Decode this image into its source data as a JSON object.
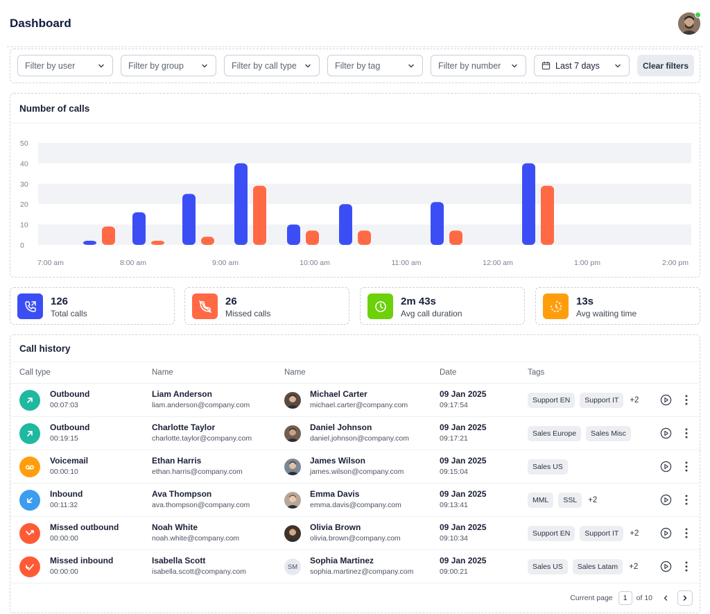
{
  "header": {
    "title": "Dashboard"
  },
  "filters": {
    "user": "Filter by user",
    "group": "Filter by group",
    "call_type": "Filter by call type",
    "tag": "Filter by tag",
    "number": "Filter by number",
    "date_range": "Last 7 days",
    "clear_label": "Clear filters"
  },
  "colors": {
    "outbound_series": "#3b4ef5",
    "missed_series": "#ff6a45",
    "total_calls": "#3b4ef5",
    "missed_calls": "#ff6a45",
    "avg_duration": "#6cd10a",
    "avg_waiting": "#ff9e0d"
  },
  "chart_data": {
    "type": "bar",
    "title": "Number of calls",
    "y_ticks": [
      0,
      10,
      20,
      30,
      40,
      50
    ],
    "ylim": [
      0,
      50
    ],
    "x_tick_labels": [
      "7:00 am",
      "8:00 am",
      "9:00 am",
      "10:00 am",
      "11:00 am",
      "12:00 am",
      "1:00 pm",
      "2:00 pm"
    ],
    "grid": "horizontal bands",
    "series": [
      {
        "color": "#3b4ef5",
        "values": [
          2,
          16,
          25,
          40,
          10,
          20,
          21,
          40
        ]
      },
      {
        "color": "#ff6a45",
        "values": [
          9,
          2,
          4,
          29,
          7,
          7,
          7,
          29
        ]
      }
    ]
  },
  "stats": [
    {
      "value": "126",
      "label": "Total calls",
      "icon": "phone-call-icon",
      "color": "#3b4ef5"
    },
    {
      "value": "26",
      "label": "Missed calls",
      "icon": "phone-missed-icon",
      "color": "#ff6a45"
    },
    {
      "value": "2m 43s",
      "label": "Avg call duration",
      "icon": "clock-icon",
      "color": "#6cd10a"
    },
    {
      "value": "13s",
      "label": "Avg waiting time",
      "icon": "waiting-timer-icon",
      "color": "#ff9e0d"
    }
  ],
  "history": {
    "title": "Call history",
    "columns": [
      "Call type",
      "Name",
      "Name",
      "Date",
      "Tags"
    ],
    "rows": [
      {
        "type": "Outbound",
        "duration": "00:07:03",
        "icon": "arrow-up-right-icon",
        "color": "#1fb8a0",
        "caller_name": "Liam Anderson",
        "caller_email": "liam.anderson@company.com",
        "agent_name": "Michael Carter",
        "agent_email": "michael.carter@company.com",
        "agent_avatar": "avatar-photo",
        "date": "09 Jan 2025",
        "time": "09:17:54",
        "tags": [
          "Support EN",
          "Support IT"
        ],
        "more": "+2"
      },
      {
        "type": "Outbound",
        "duration": "00:19:15",
        "icon": "arrow-up-right-icon",
        "color": "#1fb8a0",
        "caller_name": "Charlotte Taylor",
        "caller_email": "charlotte.taylor@company.com",
        "agent_name": "Daniel Johnson",
        "agent_email": "daniel.johnson@company.com",
        "agent_avatar": "avatar-photo",
        "date": "09 Jan 2025",
        "time": "09:17:21",
        "tags": [
          "Sales Europe",
          "Sales Misc"
        ],
        "more": ""
      },
      {
        "type": "Voicemail",
        "duration": "00:00:10",
        "icon": "voicemail-icon",
        "color": "#ff9e0d",
        "caller_name": "Ethan Harris",
        "caller_email": "ethan.harris@company.com",
        "agent_name": "James Wilson",
        "agent_email": "james.wilson@company.com",
        "agent_avatar": "avatar-photo",
        "date": "09 Jan 2025",
        "time": "09:15:04",
        "tags": [
          "Sales US"
        ],
        "more": ""
      },
      {
        "type": "Inbound",
        "duration": "00:11:32",
        "icon": "arrow-down-left-icon",
        "color": "#3b9cf0",
        "caller_name": "Ava Thompson",
        "caller_email": "ava.thompson@company.com",
        "agent_name": "Emma Davis",
        "agent_email": "emma.davis@company.com",
        "agent_avatar": "avatar-photo",
        "date": "09 Jan 2025",
        "time": "09:13:41",
        "tags": [
          "MML",
          "SSL"
        ],
        "more": "+2"
      },
      {
        "type": "Missed outbound",
        "duration": "00:00:00",
        "icon": "missed-outbound-icon",
        "color": "#ff5a36",
        "caller_name": "Noah White",
        "caller_email": "noah.white@company.com",
        "agent_name": "Olivia Brown",
        "agent_email": "olivia.brown@company.com",
        "agent_avatar": "avatar-photo",
        "date": "09 Jan 2025",
        "time": "09:10:34",
        "tags": [
          "Support EN",
          "Support IT"
        ],
        "more": "+2"
      },
      {
        "type": "Missed inbound",
        "duration": "00:00:00",
        "icon": "missed-inbound-icon",
        "color": "#ff5a36",
        "caller_name": "Isabella Scott",
        "caller_email": "isabella.scott@company.com",
        "agent_name": "Sophia Martinez",
        "agent_email": "sophia.martinez@company.com",
        "agent_avatar": "SM",
        "date": "09 Jan 2025",
        "time": "09:00:21",
        "tags": [
          "Sales US",
          "Sales Latam"
        ],
        "more": "+2"
      }
    ]
  },
  "pagination": {
    "label": "Current page",
    "current": "1",
    "total_label": "of 10"
  }
}
